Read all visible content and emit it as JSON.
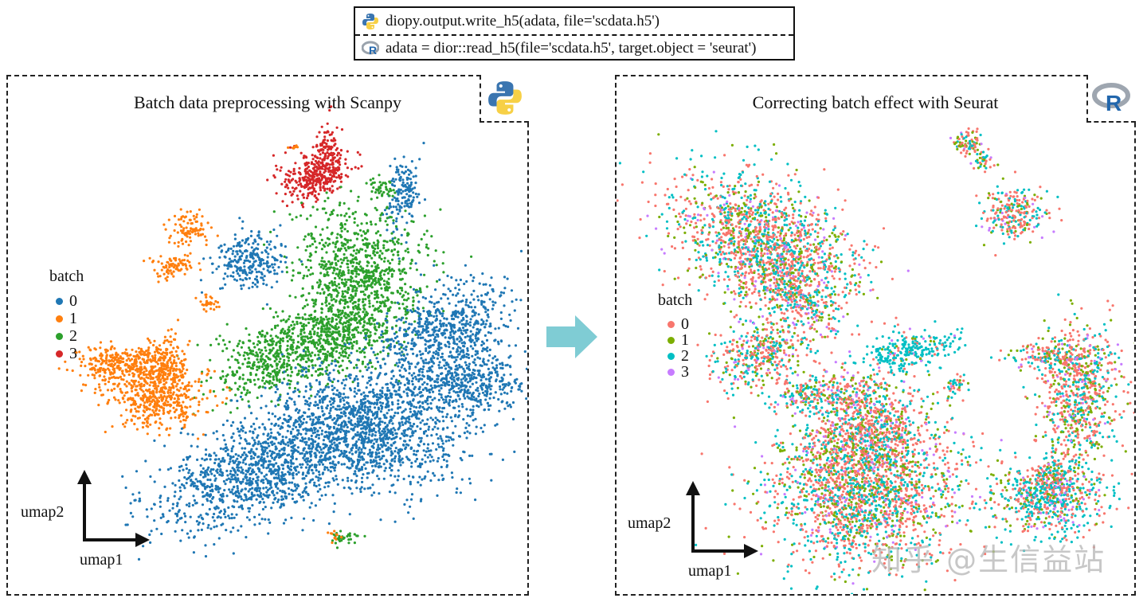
{
  "code": {
    "python_line": "diopy.output.write_h5(adata, file='scdata.h5')",
    "r_line": "adata = dior::read_h5(file='scdata.h5', target.object = 'seurat')",
    "python_icon": "python-logo-icon",
    "r_icon": "r-logo-icon"
  },
  "left_panel": {
    "title": "Batch data preprocessing with Scanpy",
    "logo": "python-logo-icon",
    "legend_title": "batch",
    "legend": [
      {
        "label": "0",
        "color": "#1f77b4"
      },
      {
        "label": "1",
        "color": "#ff7f0e"
      },
      {
        "label": "2",
        "color": "#2ca02c"
      },
      {
        "label": "3",
        "color": "#d62728"
      }
    ],
    "xlabel": "umap1",
    "ylabel": "umap2"
  },
  "right_panel": {
    "title": "Correcting batch effect  with Seurat",
    "logo": "r-logo-icon",
    "legend_title": "batch",
    "legend": [
      {
        "label": "0",
        "color": "#f8766d"
      },
      {
        "label": "1",
        "color": "#7cae00"
      },
      {
        "label": "2",
        "color": "#00bfc4"
      },
      {
        "label": "3",
        "color": "#c77cff"
      }
    ],
    "xlabel": "umap1",
    "ylabel": "umap2"
  },
  "transition_arrow": {
    "color": "#7fccd4",
    "icon": "right-arrow-icon"
  },
  "watermark": "知乎 @生信益站"
}
